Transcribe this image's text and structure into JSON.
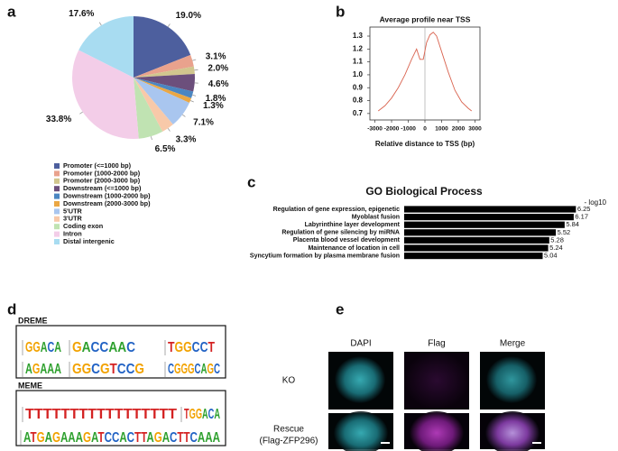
{
  "panel_labels": [
    "a",
    "b",
    "c",
    "d",
    "e"
  ],
  "chart_data": [
    {
      "type": "pie",
      "categories": [
        "Promoter (<=1000 bp)",
        "Promoter (1000-2000 bp)",
        "Promoter (2000-3000 bp)",
        "Downstream (<=1000 bp)",
        "Downstream (1000-2000 bp)",
        "Downstream (2000-3000 bp)",
        "5'UTR",
        "3'UTR",
        "Coding exon",
        "Intron",
        "Distal intergenic"
      ],
      "values": [
        19.0,
        3.1,
        2.0,
        4.6,
        1.8,
        1.3,
        7.1,
        3.3,
        6.5,
        33.8,
        17.6
      ],
      "value_labels": [
        "19.0%",
        "3.1%",
        "2.0%",
        "4.6%",
        "1.8%",
        "1.3%",
        "7.1%",
        "3.3%",
        "6.5%",
        "33.8%",
        "17.6%"
      ],
      "colors": [
        "#4d5f9e",
        "#e9a28d",
        "#d1c68e",
        "#6c4f7c",
        "#4b86c1",
        "#eaa744",
        "#a9c6ef",
        "#f8c9a9",
        "#c0e3b2",
        "#f3cde8",
        "#a8dcf1"
      ]
    },
    {
      "type": "line",
      "title": "Average profile near TSS",
      "xlabel": "Relative distance to TSS (bp)",
      "x": [
        -2800,
        -2400,
        -2000,
        -1600,
        -1200,
        -800,
        -500,
        -300,
        -100,
        100,
        300,
        500,
        700,
        1000,
        1400,
        1800,
        2200,
        2600,
        2800
      ],
      "values": [
        0.72,
        0.76,
        0.82,
        0.9,
        1.0,
        1.12,
        1.2,
        1.12,
        1.12,
        1.25,
        1.31,
        1.33,
        1.3,
        1.18,
        1.02,
        0.88,
        0.79,
        0.74,
        0.72
      ],
      "color": "#d9634f",
      "xlim": [
        -3300,
        3300
      ],
      "xticks": [
        -3000,
        -2000,
        -1000,
        0,
        1000,
        2000,
        3000
      ],
      "ylim": [
        0.65,
        1.37
      ],
      "yticks": [
        0.7,
        0.8,
        0.9,
        {
          "value": 1,
          "label": "1.0"
        },
        1.1,
        1.2,
        1.3
      ]
    },
    {
      "type": "bar",
      "orientation": "horizontal",
      "title": "GO Biological Process",
      "xlabel": "- log10",
      "categories": [
        "Regulation of gene expression, epigenetic",
        "Myoblast fusion",
        "Labyrinthine layer development",
        "Regulation of gene silencing by miRNA",
        "Placenta blood vessel development",
        "Maintenance of location in cell",
        "Syncytium formation by plasma membrane fusion"
      ],
      "values": [
        6.25,
        6.17,
        5.84,
        5.52,
        5.28,
        5.24,
        5.04
      ],
      "color": "#000000",
      "xlim": [
        0,
        6.6
      ]
    }
  ],
  "motifs": {
    "dreme": {
      "title": "DREME",
      "sequences": [
        "GGACA",
        "GACCAAC",
        "TGGCCT",
        "AGAAA",
        "GGCGTCCG",
        "CGGGCAGC"
      ]
    },
    "meme": {
      "title": "MEME",
      "sequences": [
        "TTTTTTTTTTTTTTTTT",
        "TGGACA",
        "ATGAGAAAGATCCACTTAGACTTCAAA"
      ]
    }
  },
  "microscopy": {
    "columns": [
      "DAPI",
      "Flag",
      "Merge"
    ],
    "rows": [
      {
        "label": "KO"
      },
      {
        "label": "Rescue",
        "sublabel": "(Flag-ZFP296)"
      }
    ]
  }
}
